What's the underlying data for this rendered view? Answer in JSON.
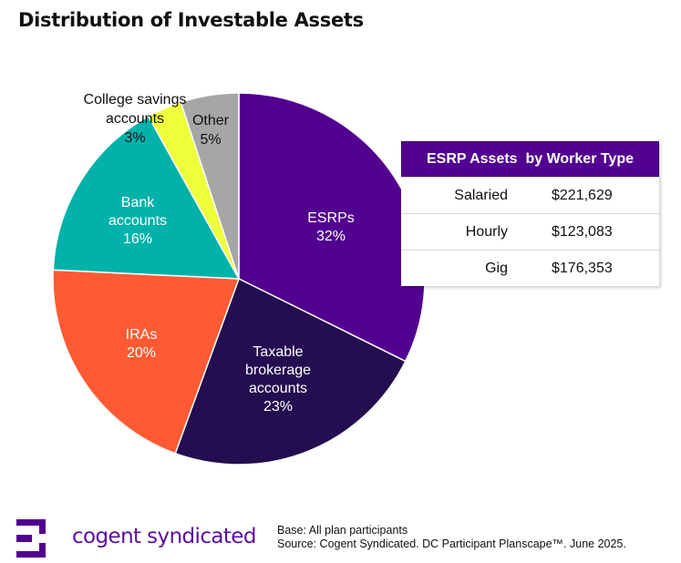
{
  "title": "Distribution of Investable Assets",
  "chart_data": {
    "type": "pie",
    "title": "Distribution of Investable Assets",
    "start_angle": "12 o'clock, clockwise",
    "slices": [
      {
        "label": "ESRPs",
        "value": 32,
        "display": "32%",
        "color": "#520090"
      },
      {
        "label": "Taxable brokerage accounts",
        "value": 23,
        "display": "23%",
        "color": "#240D50"
      },
      {
        "label": "IRAs",
        "value": 20,
        "display": "20%",
        "color": "#FF5A33"
      },
      {
        "label": "Bank accounts",
        "value": 16,
        "display": "16%",
        "color": "#00B2A9"
      },
      {
        "label": "College savings accounts",
        "value": 3,
        "display": "3%",
        "color": "#EEFF3A"
      },
      {
        "label": "Other",
        "value": 5,
        "display": "5%",
        "color": "#A6A6A6"
      }
    ]
  },
  "labels": {
    "esrps": {
      "name": "ESRPs",
      "pct": "32%"
    },
    "taxable": {
      "line1": "Taxable",
      "line2": "brokerage",
      "line3": "accounts",
      "pct": "23%"
    },
    "iras": {
      "name": "IRAs",
      "pct": "20%"
    },
    "bank": {
      "line1": "Bank",
      "line2": "accounts",
      "pct": "16%"
    },
    "college": {
      "line1": "College savings",
      "line2": "accounts",
      "pct": "3%"
    },
    "other": {
      "name": "Other",
      "pct": "5%"
    }
  },
  "table": {
    "header": "ESRP Assets  by Worker Type",
    "rows": [
      {
        "type": "Salaried",
        "value": "$221,629"
      },
      {
        "type": "Hourly",
        "value": "$123,083"
      },
      {
        "type": "Gig",
        "value": "$176,353"
      }
    ]
  },
  "footer": {
    "brand": "cogent syndicated",
    "base": "Base: All plan participants",
    "source": "Source: Cogent Syndicated. DC Participant Planscape™. June 2025."
  },
  "colors": {
    "brand_purple": "#520090",
    "brand_text": "#5a0ea0"
  }
}
